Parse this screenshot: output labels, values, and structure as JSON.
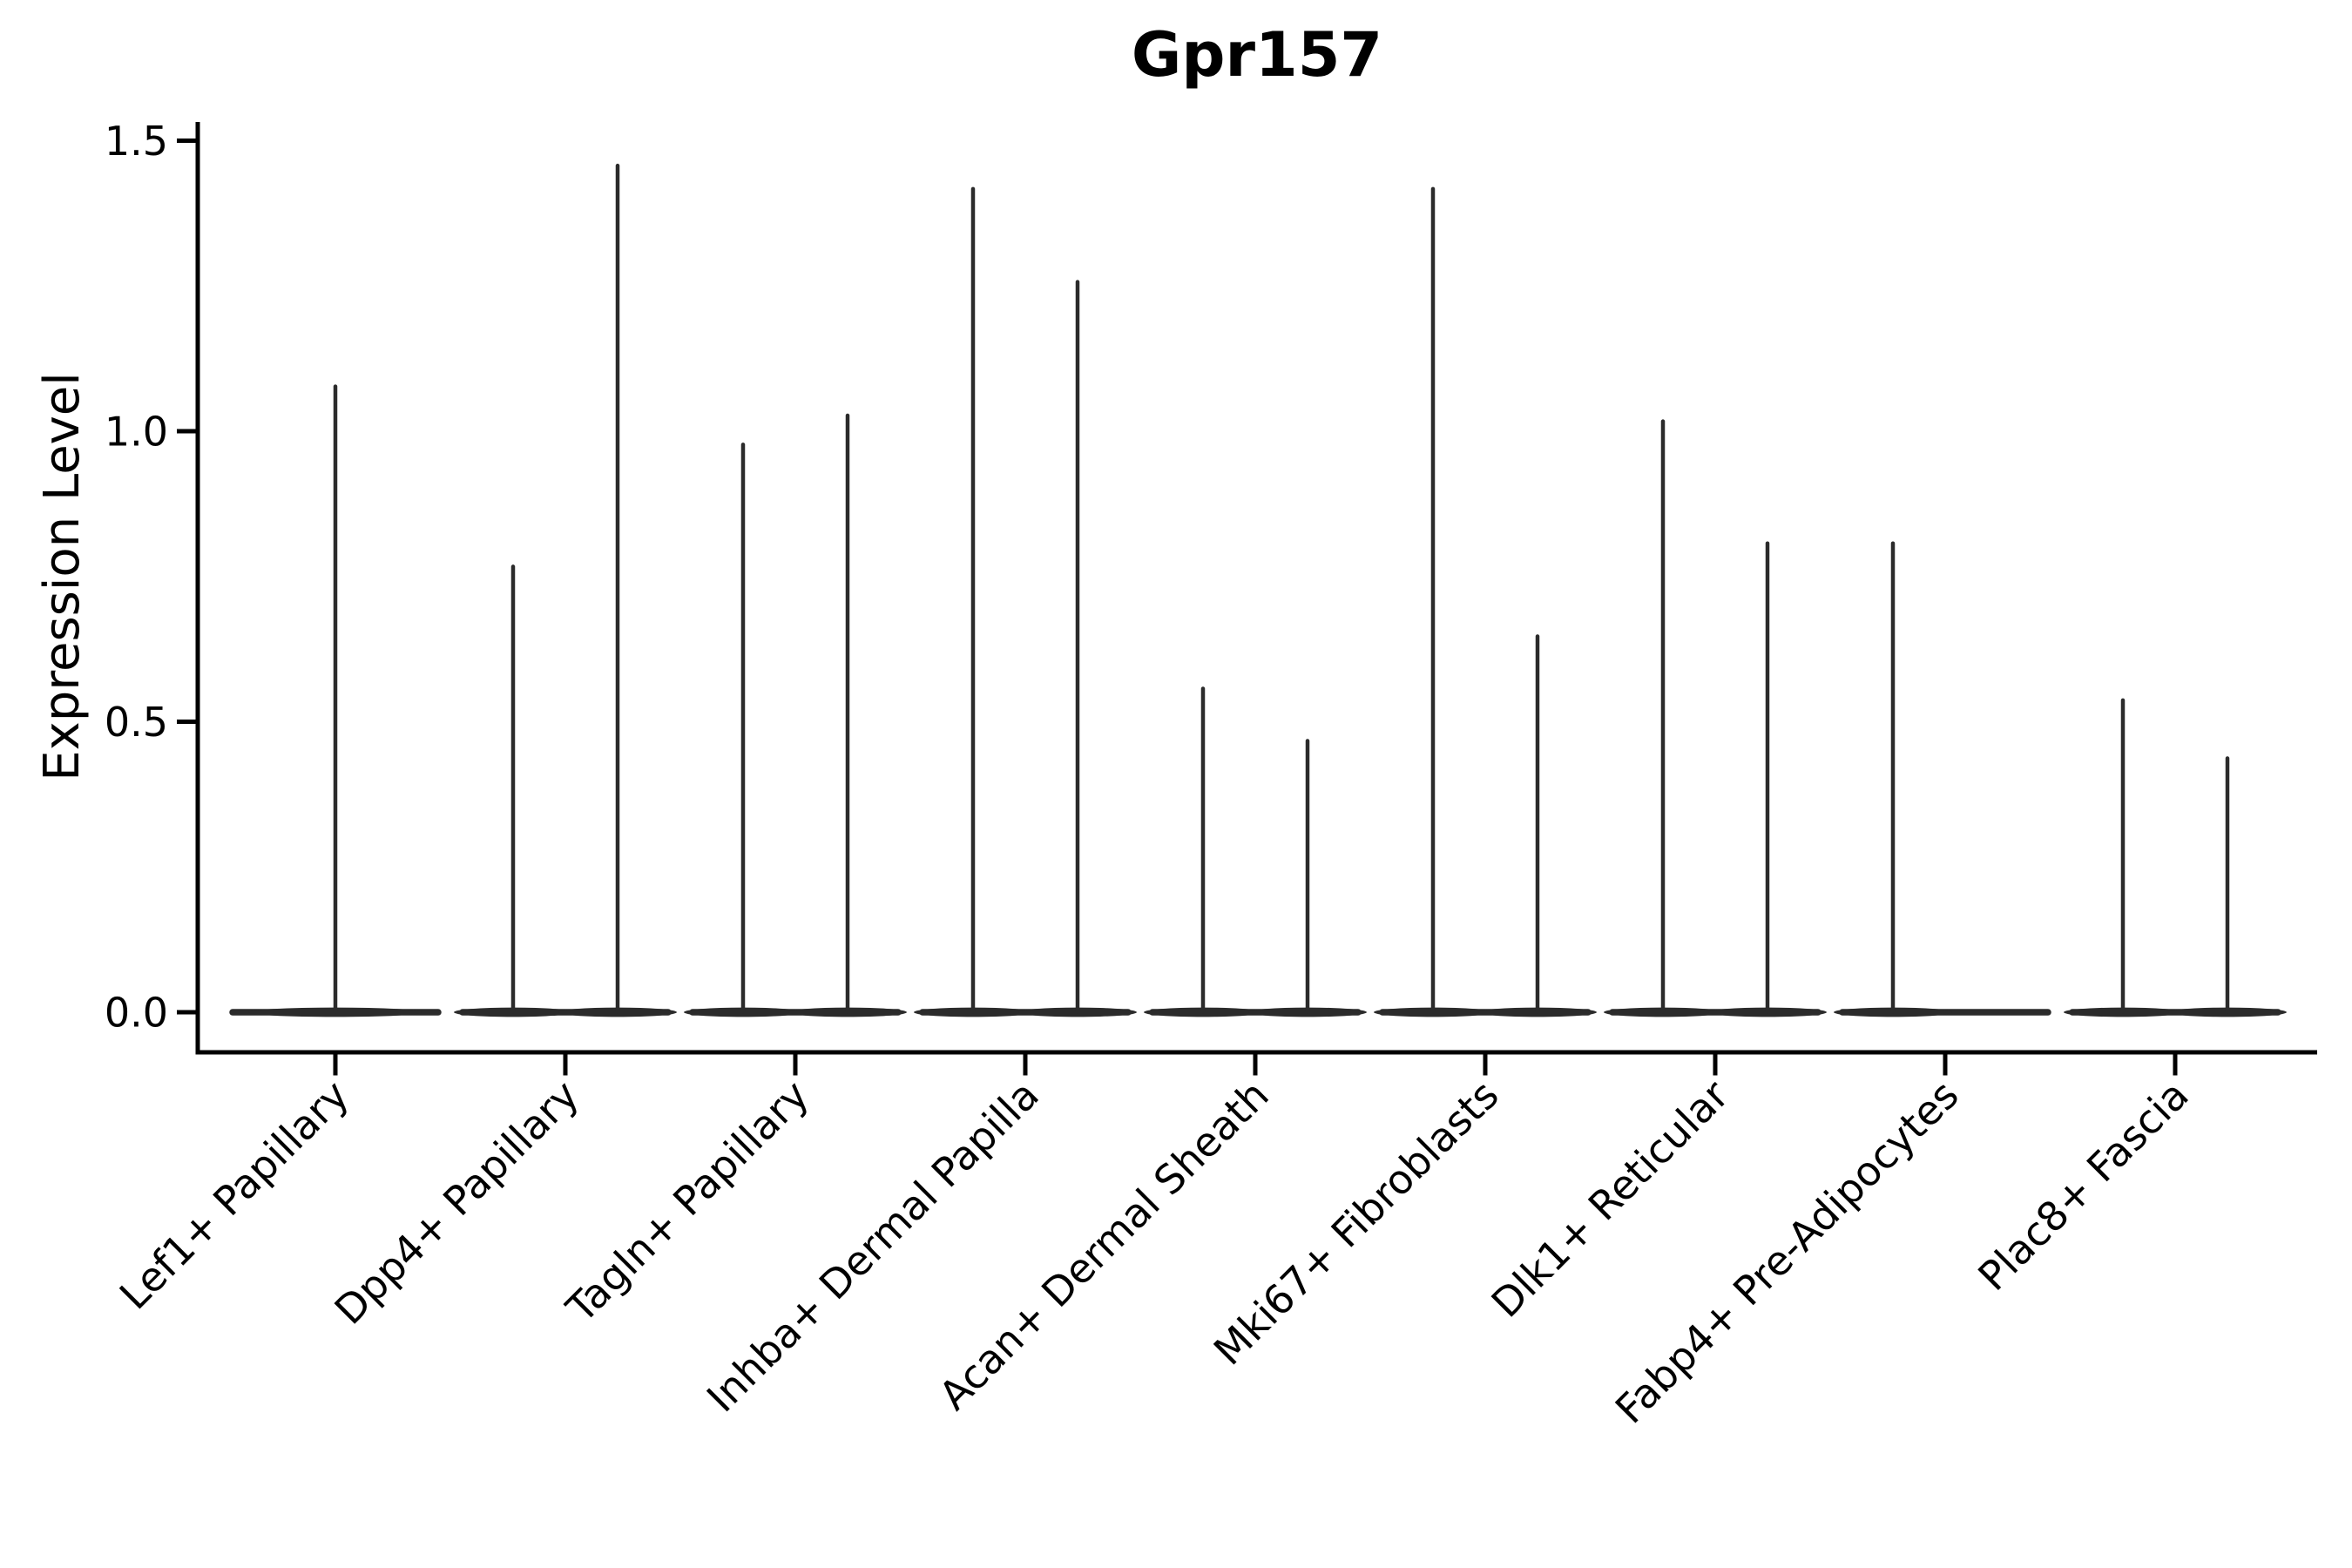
{
  "figure": {
    "title": "Gpr157",
    "y_axis_title": "Expression Level"
  },
  "chart_data": {
    "type": "violin",
    "title": "Gpr157",
    "xlabel": "",
    "ylabel": "Expression Level",
    "ylim": [
      0,
      1.55
    ],
    "ytick_labels": [
      "0.0",
      "0.5",
      "1.0",
      "1.5"
    ],
    "ytick_values": [
      0,
      0.5,
      1.0,
      1.5
    ],
    "grid": false,
    "legend": "none",
    "description": "Single-cell expression violin plot. Each violin is dominated by zeros, collapsing to a wide flat base at expression 0 with a hairline vertical spike reaching the maximum expression value. Categories with two sub-violins show two spikes offset left/right of the category center.",
    "categories": [
      "Lef1+ Papillary",
      "Dpp4+ Papillary",
      "Tagln+ Papillary",
      "Inhba+ Dermal Papilla",
      "Acan+ Dermal Sheath",
      "Mki67+ Fibroblasts",
      "Dlk1+ Reticular",
      "Fabp4+ Pre-Adipocytes",
      "Plac8+ Fascia"
    ],
    "series": [
      {
        "category": "Lef1+ Papillary",
        "violins": [
          {
            "position": "center",
            "base_value": 0,
            "peak_value": 1.08
          }
        ]
      },
      {
        "category": "Dpp4+ Papillary",
        "violins": [
          {
            "position": "left",
            "base_value": 0,
            "peak_value": 0.77
          },
          {
            "position": "right",
            "base_value": 0,
            "peak_value": 1.46
          }
        ]
      },
      {
        "category": "Tagln+ Papillary",
        "violins": [
          {
            "position": "left",
            "base_value": 0,
            "peak_value": 0.98
          },
          {
            "position": "right",
            "base_value": 0,
            "peak_value": 1.03
          }
        ]
      },
      {
        "category": "Inhba+ Dermal Papilla",
        "violins": [
          {
            "position": "left",
            "base_value": 0,
            "peak_value": 1.42
          },
          {
            "position": "right",
            "base_value": 0,
            "peak_value": 1.26
          }
        ]
      },
      {
        "category": "Acan+ Dermal Sheath",
        "violins": [
          {
            "position": "left",
            "base_value": 0,
            "peak_value": 0.56
          },
          {
            "position": "right",
            "base_value": 0,
            "peak_value": 0.47
          }
        ]
      },
      {
        "category": "Mki67+ Fibroblasts",
        "violins": [
          {
            "position": "left",
            "base_value": 0,
            "peak_value": 1.42
          },
          {
            "position": "right",
            "base_value": 0,
            "peak_value": 0.65
          }
        ]
      },
      {
        "category": "Dlk1+ Reticular",
        "violins": [
          {
            "position": "left",
            "base_value": 0,
            "peak_value": 1.02
          },
          {
            "position": "right",
            "base_value": 0,
            "peak_value": 0.81
          }
        ]
      },
      {
        "category": "Fabp4+ Pre-Adipocytes",
        "violins": [
          {
            "position": "left",
            "base_value": 0,
            "peak_value": 0.81
          }
        ]
      },
      {
        "category": "Plac8+ Fascia",
        "violins": [
          {
            "position": "left",
            "base_value": 0,
            "peak_value": 0.54
          },
          {
            "position": "right",
            "base_value": 0,
            "peak_value": 0.44
          }
        ]
      }
    ],
    "colors": {
      "violin": "#2b2b2b",
      "axis": "#000000",
      "text": "#000000",
      "background": "#ffffff"
    }
  }
}
